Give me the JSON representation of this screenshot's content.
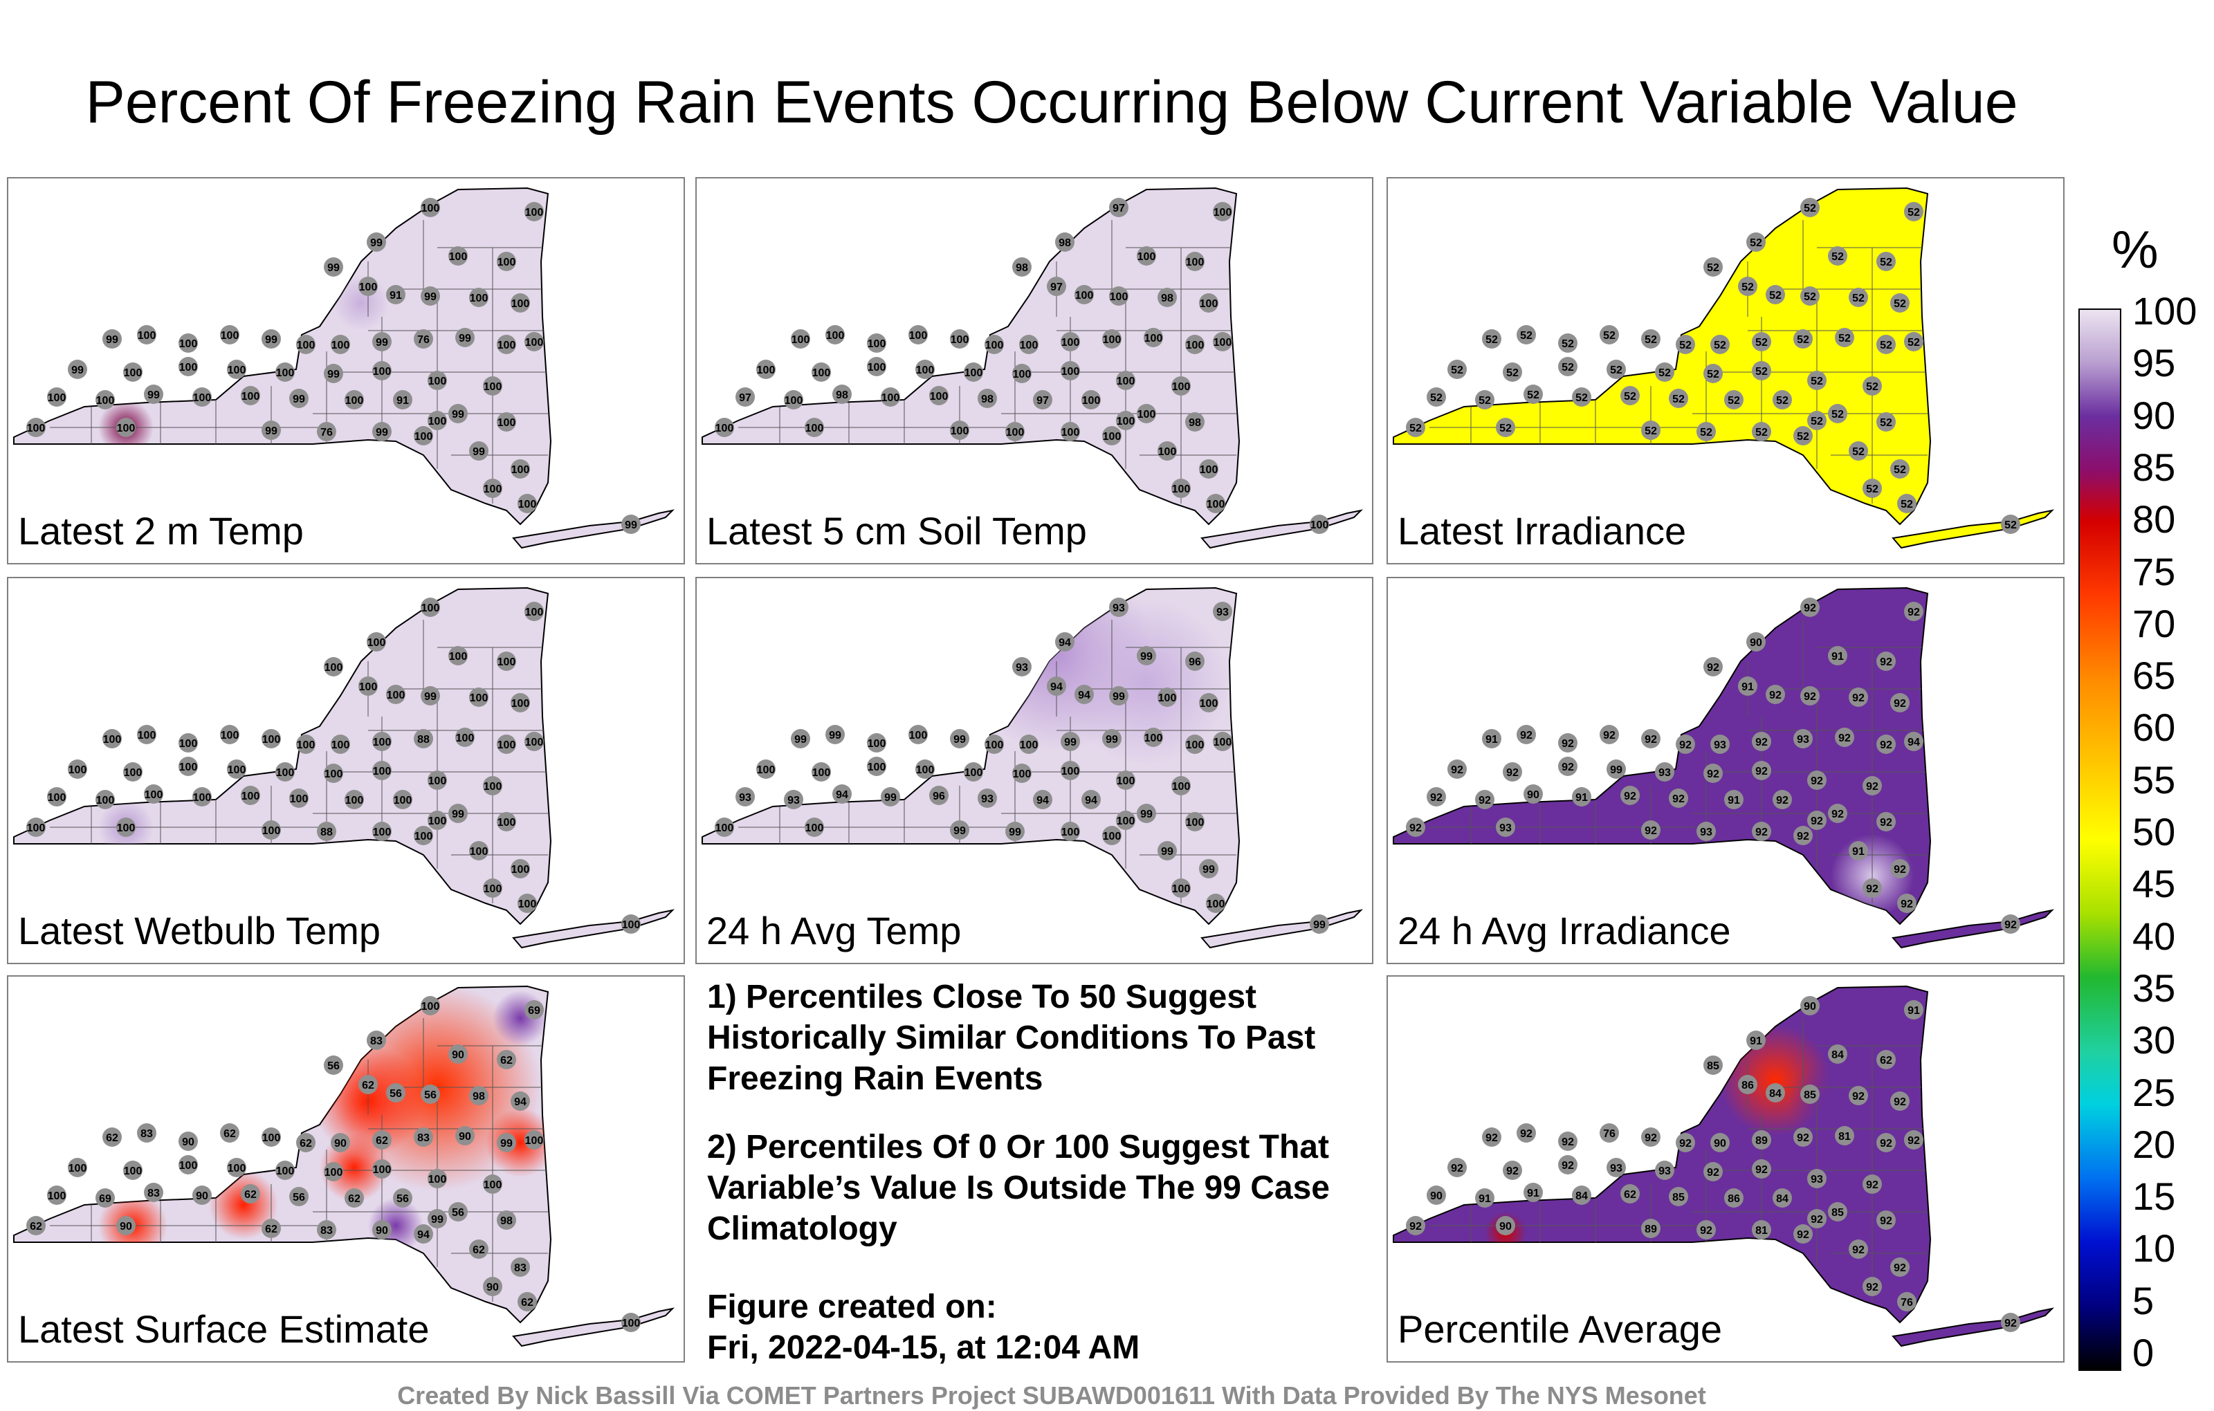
{
  "title": "Percent Of Freezing Rain Events Occurring Below Current Variable Value",
  "panels": [
    {
      "label": "Latest 2 m Temp",
      "fill": "#e4d8eb",
      "values": [
        "100",
        "100",
        "99",
        "100",
        "100",
        "99",
        "100",
        "91",
        "99",
        "100",
        "100",
        "99",
        "100",
        "100",
        "100",
        "99",
        "100",
        "100",
        "99",
        "76",
        "99",
        "100",
        "100",
        "99",
        "100",
        "100",
        "100",
        "100",
        "99",
        "100",
        "100",
        "100"
      ]
    },
    {
      "label": "Latest 5 cm Soil Temp",
      "fill": "#e4d8eb",
      "values": [
        "97",
        "100",
        "98",
        "100",
        "100",
        "98",
        "97",
        "100",
        "100",
        "98",
        "100",
        "100",
        "100",
        "100",
        "100",
        "100",
        "100",
        "100",
        "100",
        "100",
        "100",
        "100",
        "100",
        "100",
        "100",
        "100",
        "100",
        "100",
        "100",
        "100",
        "100",
        "100"
      ]
    },
    {
      "label": "Latest Irradiance",
      "fill": "#ffff00",
      "values": [
        "52",
        "52",
        "52",
        "52",
        "52",
        "52",
        "52",
        "52",
        "52",
        "52",
        "52",
        "52",
        "52",
        "52",
        "52",
        "52",
        "52",
        "52",
        "52",
        "52",
        "52",
        "52",
        "52",
        "52",
        "52",
        "52",
        "52",
        "52",
        "52",
        "52",
        "52",
        "52"
      ]
    },
    {
      "label": "Latest Wetbulb Temp",
      "fill": "#e4d8eb",
      "values": [
        "100",
        "100",
        "100",
        "100",
        "100",
        "100",
        "100",
        "100",
        "99",
        "100",
        "100",
        "100",
        "100",
        "100",
        "100",
        "100",
        "100",
        "100",
        "100",
        "88",
        "100",
        "100",
        "100",
        "100",
        "100",
        "100",
        "100",
        "100",
        "100",
        "100",
        "100",
        "100"
      ]
    },
    {
      "label": "24 h Avg Temp",
      "fill": "#e4d8eb",
      "values": [
        "93",
        "93",
        "94",
        "99",
        "96",
        "93",
        "94",
        "94",
        "99",
        "100",
        "100",
        "99",
        "99",
        "100",
        "100",
        "99",
        "100",
        "100",
        "99",
        "99",
        "100",
        "100",
        "100",
        "100",
        "100",
        "100",
        "100",
        "100",
        "100",
        "100",
        "100",
        "100"
      ]
    },
    {
      "label": "24 h Avg Irradiance",
      "fill": "#6a2f9c",
      "values": [
        "92",
        "92",
        "90",
        "91",
        "92",
        "92",
        "91",
        "92",
        "92",
        "92",
        "92",
        "91",
        "92",
        "92",
        "92",
        "92",
        "92",
        "93",
        "92",
        "93",
        "92",
        "92",
        "94",
        "92",
        "92",
        "92",
        "99",
        "93",
        "92",
        "92",
        "92",
        "92"
      ]
    },
    {
      "label": "Latest Surface Estimate",
      "fill": "#e4d8eb",
      "values": [
        "100",
        "69",
        "83",
        "90",
        "62",
        "56",
        "62",
        "56",
        "56",
        "98",
        "94",
        "62",
        "83",
        "90",
        "62",
        "100",
        "62",
        "90",
        "62",
        "83",
        "90",
        "99",
        "100",
        "100",
        "100",
        "100",
        "100",
        "100",
        "100",
        "100",
        "100",
        "100"
      ]
    },
    {
      "label": "Percentile Average",
      "fill": "#6a2f9c",
      "values": [
        "90",
        "91",
        "91",
        "84",
        "62",
        "85",
        "86",
        "84",
        "85",
        "92",
        "92",
        "92",
        "92",
        "92",
        "76",
        "92",
        "92",
        "90",
        "89",
        "92",
        "81",
        "92",
        "92",
        "92",
        "92",
        "92",
        "93",
        "93",
        "92",
        "92",
        "93",
        "92"
      ]
    }
  ],
  "notes": [
    "1) Percentiles Close To 50 Suggest Historically Similar Conditions To Past Freezing Rain Events",
    "2) Percentiles Of 0 Or 100 Suggest That Variable’s Value Is Outside The 99 Case Climatology"
  ],
  "created_label": "Figure created on:",
  "created_value": "Fri, 2022-04-15, at 12:04 AM",
  "footer": "Created By Nick Bassill Via COMET Partners Project SUBAWD001611 With Data Provided By The NYS Mesonet",
  "colorbar": {
    "unit": "%",
    "ticks": [
      "100",
      "95",
      "90",
      "85",
      "80",
      "75",
      "70",
      "65",
      "60",
      "55",
      "50",
      "45",
      "40",
      "35",
      "30",
      "25",
      "20",
      "15",
      "10",
      "5",
      "0"
    ]
  }
}
